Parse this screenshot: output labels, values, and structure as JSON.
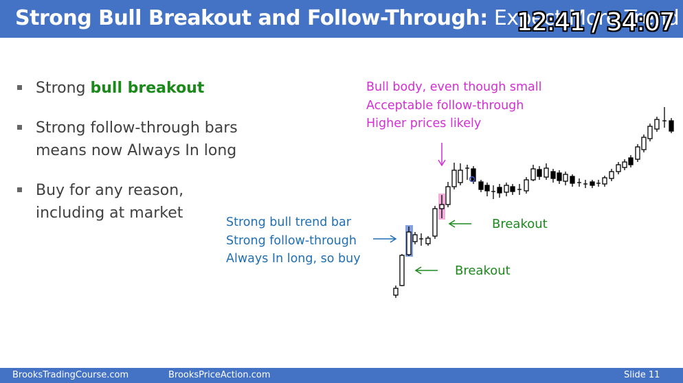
{
  "slide": {
    "title_bold": "Strong Bull Breakout and Follow-Through:",
    "title_rest": " Expect More Trend",
    "timer": "12:41 / 34:07"
  },
  "bullets": [
    {
      "pre": "Strong ",
      "highlight": "bull breakout",
      "text_line1": "",
      "text_line2": ""
    },
    {
      "line1": "Strong follow-through bars",
      "line2": "means now Always In long"
    },
    {
      "line1": "Buy for any reason,",
      "line2": "including at market"
    }
  ],
  "annotations": {
    "pink_note": [
      "Bull body, even though small",
      "Acceptable follow-through",
      "Higher prices likely"
    ],
    "blue_note": [
      "Strong bull trend bar",
      "Strong follow-through",
      "Always In long, so buy"
    ],
    "breakout_upper": "Breakout",
    "breakout_lower": "Breakout"
  },
  "footer": {
    "left": "BrooksTradingCourse.com",
    "center": "BrooksPriceAction.com",
    "slide_label": "Slide  11"
  },
  "colors": {
    "header": "#4472c4",
    "bull_breakout": "#1b8a1b",
    "pink": "#d42ed4",
    "blue": "#1f6fb4"
  }
}
